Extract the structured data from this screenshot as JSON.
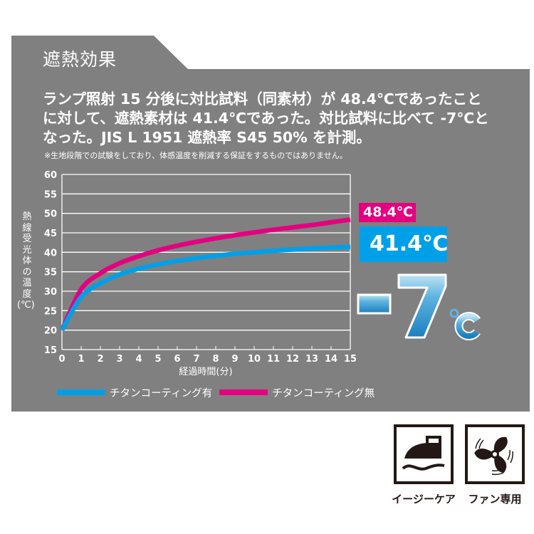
{
  "panel": {
    "title": "遮熱効果",
    "description_lines": [
      "ランプ照射 15 分後に対比試料（同素材）が 48.4℃であったこと",
      "に対して、遮熱素材は 41.4℃であった。対比試料に比べて -7℃と",
      "なった。JIS L 1951 遮熱率 S45 50% を計測。"
    ],
    "note": "※生地段階での試験をしており、体感温度を削減する保証をするものではありません。",
    "colors": {
      "panel_bg": "#808080",
      "pink": "#e4007f",
      "blue": "#00a0e9",
      "white": "#ffffff"
    }
  },
  "badges": {
    "without_coating": "48.4℃",
    "with_coating": "41.4℃",
    "difference": "-7",
    "difference_unit": "℃"
  },
  "chart_data": {
    "type": "line",
    "title": "",
    "xlabel": "経過時間(分)",
    "ylabel": "熱線受光体の温度(℃)",
    "ylabel_chars": [
      "熱",
      "線",
      "受",
      "光",
      "体",
      "の",
      "温",
      "度"
    ],
    "ylabel_unit": "(℃)",
    "x": [
      0,
      1,
      2,
      3,
      4,
      5,
      6,
      7,
      8,
      9,
      10,
      11,
      12,
      13,
      14,
      15
    ],
    "x_ticks": [
      "0",
      "1",
      "2",
      "3",
      "4",
      "5",
      "6",
      "7",
      "8",
      "9",
      "10",
      "11",
      "12",
      "13",
      "14",
      "15"
    ],
    "y_ticks": [
      "15",
      "20",
      "25",
      "30",
      "35",
      "40",
      "45",
      "50",
      "55",
      "60"
    ],
    "xlim": [
      0,
      15
    ],
    "ylim": [
      15,
      60
    ],
    "grid": true,
    "legend_position": "bottom",
    "series": [
      {
        "name": "チタンコーティング有",
        "color": "#00a0e9",
        "values": [
          20.0,
          28.5,
          32.0,
          34.3,
          35.8,
          36.9,
          37.8,
          38.5,
          39.1,
          39.6,
          40.0,
          40.4,
          40.7,
          41.0,
          41.2,
          41.4
        ]
      },
      {
        "name": "チタンコーティング無",
        "color": "#e4007f",
        "values": [
          20.0,
          30.5,
          34.6,
          37.2,
          39.0,
          40.5,
          41.7,
          42.7,
          43.6,
          44.4,
          45.1,
          45.8,
          46.4,
          47.0,
          47.7,
          48.4
        ]
      }
    ]
  },
  "legend": {
    "items": [
      {
        "label": "チタンコーティング有",
        "color": "#00a0e9"
      },
      {
        "label": "チタンコーティング無",
        "color": "#e4007f"
      }
    ]
  },
  "care_icons": [
    {
      "icon": "iron-icon",
      "label": "イージーケア"
    },
    {
      "icon": "fan-icon",
      "label": "ファン専用"
    }
  ]
}
